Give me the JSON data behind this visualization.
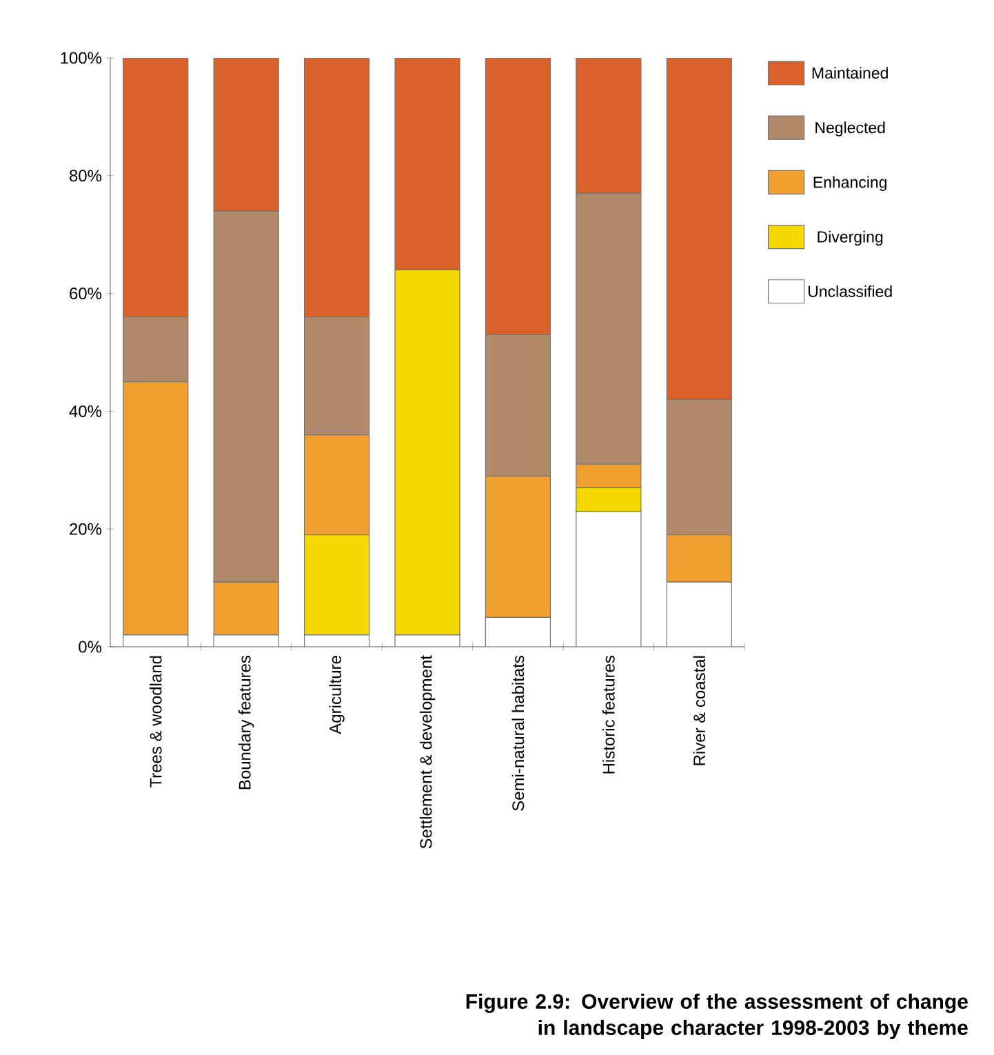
{
  "chart_data": {
    "type": "bar",
    "stacked": true,
    "categories": [
      "Trees & woodland",
      "Boundary features",
      "Agriculture",
      "Settlement & development",
      "Semi-natural habitats",
      "Historic features",
      "River & coastal"
    ],
    "series": [
      {
        "name": "Unclassified",
        "color": "#ffffff",
        "values": [
          2,
          2,
          2,
          2,
          5,
          23,
          11
        ]
      },
      {
        "name": "Diverging",
        "color": "#f5d800",
        "values": [
          0,
          0,
          17,
          62,
          0,
          4,
          0
        ]
      },
      {
        "name": "Enhancing",
        "color": "#f0a030",
        "values": [
          43,
          9,
          17,
          0,
          24,
          4,
          8
        ]
      },
      {
        "name": "Neglected",
        "color": "#b08a6a",
        "values": [
          11,
          63,
          20,
          0,
          24,
          46,
          23
        ]
      },
      {
        "name": "Maintained",
        "color": "#d9622b",
        "values": [
          44,
          26,
          44,
          36,
          47,
          23,
          58
        ]
      }
    ],
    "ylim": [
      0,
      100
    ],
    "yticks": [
      {
        "value": 0,
        "label": "0%"
      },
      {
        "value": 20,
        "label": "20%"
      },
      {
        "value": 40,
        "label": "40%"
      },
      {
        "value": 60,
        "label": "60%"
      },
      {
        "value": 80,
        "label": "80%"
      },
      {
        "value": 100,
        "label": "100%"
      }
    ],
    "legend": "right",
    "annotations": [
      "**Figure 2.9: Overview of the assessment of change in landscape character 1998-2003 by theme**"
    ]
  }
}
